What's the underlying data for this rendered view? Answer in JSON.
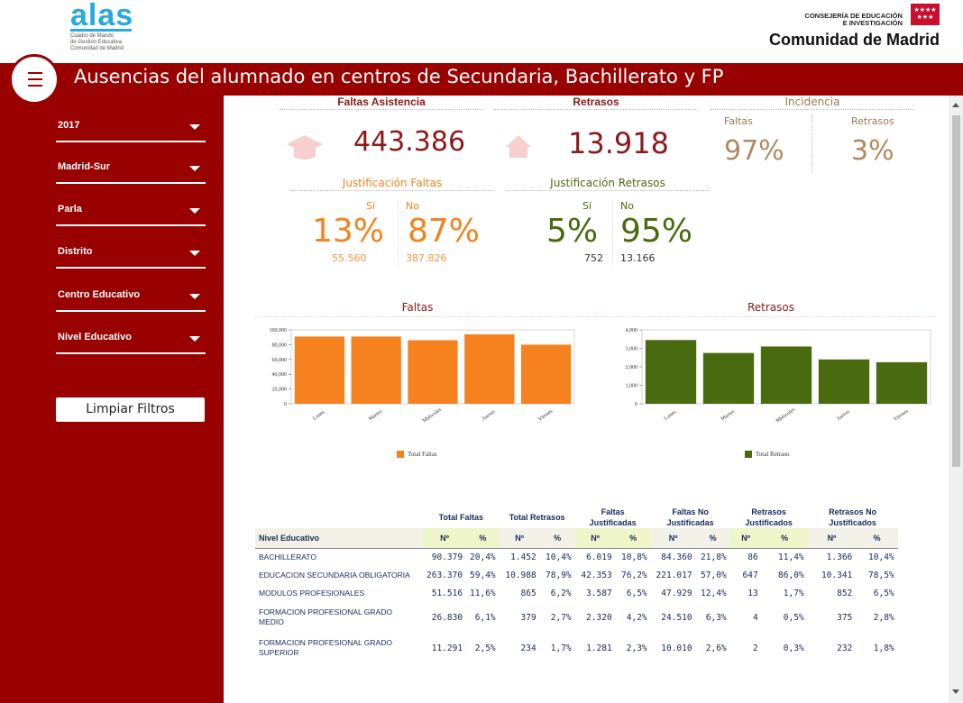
{
  "header": {
    "logo_word": "alas",
    "logo_sub1": "Cuadro de Mando",
    "logo_sub2": "de Gestión Educativa",
    "logo_sub3": "Comunidad de Madrid",
    "region_small1": "CONSEJERÍA DE EDUCACIÓN",
    "region_small2": "E INVESTIGACIÓN",
    "region_big": "Comunidad de Madrid",
    "flag_stars": "★★★★\n★★★"
  },
  "title": "Ausencias del alumnado en centros de Secundaria, Bachillerato y FP",
  "filters": [
    {
      "label": "2017"
    },
    {
      "label": "Madrid-Sur"
    },
    {
      "label": "Parla"
    },
    {
      "label": "Distrito"
    },
    {
      "label": "Centro Educativo"
    },
    {
      "label": "Nivel Educativo"
    }
  ],
  "clear_filters": "Limpiar Filtros",
  "kpi": {
    "faltas_title": "Faltas Asistencia",
    "faltas_value": "443.386",
    "retrasos_title": "Retrasos",
    "retrasos_value": "13.918",
    "incidencia_title": "Incidencia",
    "inc_faltas_label": "Faltas",
    "inc_faltas_value": "97%",
    "inc_retrasos_label": "Retrasos",
    "inc_retrasos_value": "3%"
  },
  "just_faltas": {
    "title": "Justificación Faltas",
    "si_label": "Sí",
    "no_label": "No",
    "si_pct": "13%",
    "no_pct": "87%",
    "si_num": "55.560",
    "no_num": "387.826"
  },
  "just_retrasos": {
    "title": "Justificación Retrasos",
    "si_label": "Sí",
    "no_label": "No",
    "si_pct": "5%",
    "no_pct": "95%",
    "si_num": "752",
    "no_num": "13.166"
  },
  "colors": {
    "brand": "#990000",
    "faltas": "#f5821f",
    "retrasos": "#4a6a10"
  },
  "chart_data": [
    {
      "type": "bar",
      "title": "Faltas",
      "categories": [
        "Lunes",
        "Martes",
        "Miércoles",
        "Jueves",
        "Viernes"
      ],
      "series": [
        {
          "name": "Total Faltas",
          "values": [
            91000,
            91000,
            86000,
            94000,
            80000
          ]
        }
      ],
      "ylim": [
        0,
        100000
      ],
      "yticks": [
        "0",
        "20,000",
        "40,000",
        "60,000",
        "80,000",
        "100,000"
      ],
      "legend": "bottom"
    },
    {
      "type": "bar",
      "title": "Retrasos",
      "categories": [
        "Lunes",
        "Martes",
        "Miércoles",
        "Jueves",
        "Viernes"
      ],
      "series": [
        {
          "name": "Total Retraso",
          "values": [
            3450,
            2750,
            3100,
            2400,
            2250
          ]
        }
      ],
      "ylim": [
        0,
        4000
      ],
      "yticks": [
        "0",
        "1,000",
        "2,000",
        "3,000",
        "4,000"
      ],
      "legend": "bottom"
    }
  ],
  "table": {
    "groups": [
      "Total Faltas",
      "Total Retrasos",
      "Faltas Justificadas",
      "Faltas No Justificadas",
      "Retrasos Justificados",
      "Retrasos No Justificados"
    ],
    "row_label": "Nivel Educativo",
    "num_label": "Nº",
    "pct_label": "%",
    "rows": [
      {
        "name": "BACHILLERATO",
        "v": [
          "90.379",
          "20,4%",
          "1.452",
          "10,4%",
          "6.019",
          "10,8%",
          "84.360",
          "21,8%",
          "86",
          "11,4%",
          "1.366",
          "10,4%"
        ]
      },
      {
        "name": "EDUCACION SECUNDARIA OBLIGATORIA",
        "v": [
          "263.370",
          "59,4%",
          "10.988",
          "78,9%",
          "42.353",
          "76,2%",
          "221.017",
          "57,0%",
          "647",
          "86,0%",
          "10.341",
          "78,5%"
        ]
      },
      {
        "name": "MODULOS PROFESIONALES",
        "v": [
          "51.516",
          "11,6%",
          "865",
          "6,2%",
          "3.587",
          "6,5%",
          "47.929",
          "12,4%",
          "13",
          "1,7%",
          "852",
          "6,5%"
        ]
      },
      {
        "name": "FORMACION PROFESIONAL GRADO MEDIO",
        "v": [
          "26.830",
          "6,1%",
          "379",
          "2,7%",
          "2.320",
          "4,2%",
          "24.510",
          "6,3%",
          "4",
          "0,5%",
          "375",
          "2,8%"
        ]
      },
      {
        "name": "FORMACION PROFESIONAL GRADO SUPERIOR",
        "v": [
          "11.291",
          "2,5%",
          "234",
          "1,7%",
          "1.281",
          "2,3%",
          "10.010",
          "2,6%",
          "2",
          "0,3%",
          "232",
          "1,8%"
        ]
      }
    ]
  }
}
